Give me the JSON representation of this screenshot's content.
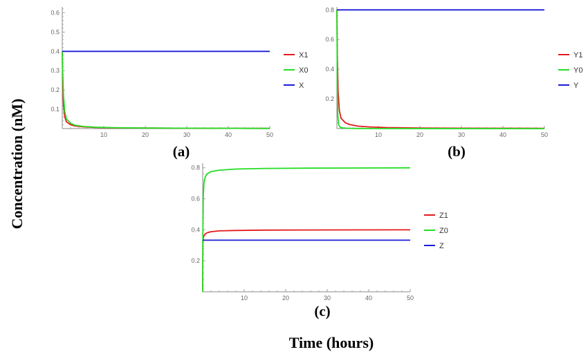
{
  "figure": {
    "ylabel": "Concentration (nM)",
    "xlabel": "Time (hours)"
  },
  "chart_data": [
    {
      "type": "line",
      "panel_label": "(a)",
      "xlim": [
        0,
        50
      ],
      "ylim": [
        0,
        0.63
      ],
      "x_ticks": [
        10,
        20,
        30,
        40,
        50
      ],
      "y_ticks": [
        0.1,
        0.2,
        0.3,
        0.4,
        0.5,
        0.6
      ],
      "x_tick_labels": [
        "10",
        "20",
        "30",
        "40",
        "50"
      ],
      "y_tick_labels": [
        "0.1",
        "0.2",
        "0.3",
        "0.4",
        "0.5",
        "0.6"
      ],
      "legend_position": "right",
      "series": [
        {
          "name": "X1",
          "color": "#e31a1c",
          "x": [
            0,
            0.1,
            0.3,
            0.6,
            1,
            2,
            3,
            5,
            8,
            12,
            20,
            30,
            50
          ],
          "y": [
            0.4,
            0.25,
            0.12,
            0.06,
            0.035,
            0.02,
            0.014,
            0.009,
            0.006,
            0.004,
            0.003,
            0.002,
            0.001
          ]
        },
        {
          "name": "X0",
          "color": "#22dd22",
          "x": [
            0,
            0.1,
            0.3,
            0.6,
            1,
            2,
            3,
            5,
            8,
            12,
            20,
            30,
            50
          ],
          "y": [
            0.4,
            0.3,
            0.17,
            0.09,
            0.05,
            0.028,
            0.018,
            0.011,
            0.007,
            0.005,
            0.003,
            0.002,
            0.001
          ]
        },
        {
          "name": "X",
          "color": "#1a1ad6",
          "x": [
            0,
            50
          ],
          "y": [
            0.4,
            0.4
          ]
        }
      ]
    },
    {
      "type": "line",
      "panel_label": "(b)",
      "xlim": [
        0,
        50
      ],
      "ylim": [
        0,
        0.82
      ],
      "x_ticks": [
        10,
        20,
        30,
        40,
        50
      ],
      "y_ticks": [
        0.2,
        0.4,
        0.6,
        0.8
      ],
      "x_tick_labels": [
        "10",
        "20",
        "30",
        "40",
        "50"
      ],
      "y_tick_labels": [
        "0.2",
        "0.4",
        "0.6",
        "0.8"
      ],
      "legend_position": "right",
      "series": [
        {
          "name": "Y1",
          "color": "#e31a1c",
          "x": [
            0,
            0.1,
            0.3,
            0.6,
            1,
            2,
            3,
            5,
            8,
            12,
            20,
            30,
            50
          ],
          "y": [
            0.8,
            0.5,
            0.25,
            0.12,
            0.07,
            0.04,
            0.028,
            0.017,
            0.011,
            0.007,
            0.004,
            0.003,
            0.002
          ]
        },
        {
          "name": "Y0",
          "color": "#22dd22",
          "x": [
            0,
            0.1,
            0.2,
            0.4,
            0.7,
            1,
            2,
            5,
            10,
            50
          ],
          "y": [
            0.8,
            0.3,
            0.1,
            0.03,
            0.012,
            0.006,
            0.003,
            0.001,
            0.0005,
            0.0001
          ]
        },
        {
          "name": "Y",
          "color": "#1a1ad6",
          "x": [
            0,
            50
          ],
          "y": [
            0.8,
            0.8
          ]
        }
      ]
    },
    {
      "type": "line",
      "panel_label": "(c)",
      "xlim": [
        0,
        50
      ],
      "ylim": [
        0,
        0.83
      ],
      "x_ticks": [
        10,
        20,
        30,
        40,
        50
      ],
      "y_ticks": [
        0.2,
        0.4,
        0.6,
        0.8
      ],
      "x_tick_labels": [
        "10",
        "20",
        "30",
        "40",
        "50"
      ],
      "y_tick_labels": [
        "0.2",
        "0.4",
        "0.6",
        "0.8"
      ],
      "legend_position": "right",
      "series": [
        {
          "name": "Z1",
          "color": "#e31a1c",
          "x": [
            0,
            0.05,
            0.2,
            0.5,
            1,
            2,
            4,
            8,
            15,
            25,
            50
          ],
          "y": [
            0,
            0.33,
            0.355,
            0.37,
            0.38,
            0.388,
            0.393,
            0.396,
            0.398,
            0.399,
            0.4
          ]
        },
        {
          "name": "Z0",
          "color": "#22dd22",
          "x": [
            0,
            0.05,
            0.15,
            0.3,
            0.6,
            1,
            2,
            4,
            8,
            15,
            25,
            50
          ],
          "y": [
            0,
            0.4,
            0.62,
            0.7,
            0.74,
            0.76,
            0.775,
            0.785,
            0.792,
            0.796,
            0.798,
            0.8
          ]
        },
        {
          "name": "Z",
          "color": "#1a1ad6",
          "x": [
            0,
            50
          ],
          "y": [
            0.333,
            0.333
          ]
        }
      ]
    }
  ]
}
